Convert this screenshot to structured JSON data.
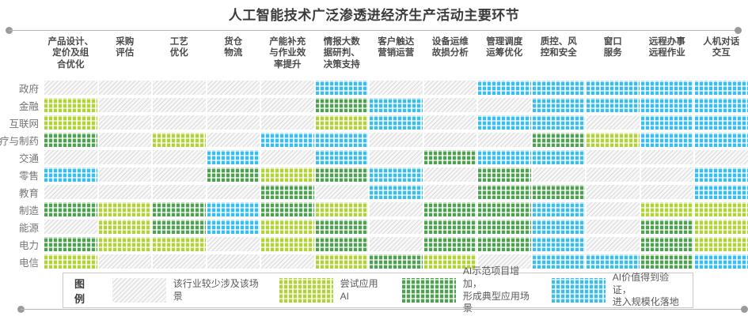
{
  "title": "人工智能技术广泛渗透进经济生产活动主要环节",
  "columns_display": [
    "产品设计、\n定价及组\n合优化",
    "采购\n评估",
    "工艺\n优化",
    "货仓\n物流",
    "产能补充\n与作业效\n率提升",
    "情报大数\n据研判、\n决策支持",
    "客户触达\n营销运营",
    "设备运维\n故损分析",
    "管理调度\n运筹优化",
    "质控、风\n控和安全",
    "窗口\n服务",
    "远程办事\n远程作业",
    "人机对话\n交互"
  ],
  "rows": [
    "政府",
    "金融",
    "互联网",
    "医疗与制药",
    "交通",
    "零售",
    "教育",
    "制造",
    "能源",
    "电力",
    "电信"
  ],
  "legend": {
    "label": "图例",
    "items": [
      {
        "level": 0,
        "text": "该行业较少涉及该场景"
      },
      {
        "level": 1,
        "text": "尝试应用AI"
      },
      {
        "level": 2,
        "text": "AI示范项目增加，\n形成典型应用场景"
      },
      {
        "level": 3,
        "text": "AI价值得到验证，\n进入规模化落地"
      }
    ]
  },
  "colors": {
    "none_hatch": "#dadada",
    "try_green": "#b2d23c",
    "demo_green": "#519f54",
    "scale_blue": "#3cbdee",
    "title_text": "#3b3b3b",
    "header_text": "#4a4a4a",
    "row_label_text": "#757575"
  },
  "chart_data": {
    "type": "heatmap",
    "title": "人工智能技术广泛渗透进经济生产活动主要环节",
    "x_categories": [
      "产品设计、定价及组合优化",
      "采购评估",
      "工艺优化",
      "货仓物流",
      "产能补充与作业效率提升",
      "情报大数据研判、决策支持",
      "客户触达营销运营",
      "设备运维故损分析",
      "管理调度运筹优化",
      "质控、风控和安全",
      "窗口服务",
      "远程办事远程作业",
      "人机对话交互"
    ],
    "y_categories": [
      "政府",
      "金融",
      "互联网",
      "医疗与制药",
      "交通",
      "零售",
      "教育",
      "制造",
      "能源",
      "电力",
      "电信"
    ],
    "levels": [
      {
        "value": 0,
        "label": "该行业较少涉及该场景"
      },
      {
        "value": 1,
        "label": "尝试应用AI"
      },
      {
        "value": 2,
        "label": "AI示范项目增加，形成典型应用场景"
      },
      {
        "value": 3,
        "label": "AI价值得到验证，进入规模化落地"
      }
    ],
    "values": [
      [
        0,
        0,
        0,
        0,
        0,
        3,
        0,
        0,
        3,
        3,
        3,
        3,
        3
      ],
      [
        1,
        0,
        0,
        0,
        0,
        2,
        3,
        0,
        0,
        3,
        3,
        3,
        3
      ],
      [
        1,
        0,
        0,
        0,
        0,
        1,
        3,
        0,
        3,
        3,
        0,
        3,
        3
      ],
      [
        2,
        0,
        1,
        0,
        3,
        3,
        0,
        0,
        0,
        2,
        1,
        3,
        3
      ],
      [
        0,
        0,
        0,
        3,
        0,
        3,
        0,
        2,
        3,
        3,
        0,
        0,
        0
      ],
      [
        3,
        0,
        0,
        2,
        1,
        2,
        3,
        0,
        2,
        0,
        0,
        0,
        3
      ],
      [
        0,
        0,
        0,
        0,
        2,
        0,
        3,
        0,
        2,
        2,
        0,
        0,
        3
      ],
      [
        2,
        1,
        2,
        3,
        2,
        1,
        0,
        2,
        2,
        3,
        0,
        1,
        1
      ],
      [
        0,
        1,
        2,
        3,
        1,
        2,
        0,
        2,
        2,
        3,
        0,
        2,
        1
      ],
      [
        2,
        1,
        1,
        0,
        1,
        2,
        0,
        2,
        2,
        3,
        0,
        2,
        1
      ],
      [
        1,
        0,
        0,
        0,
        0,
        1,
        2,
        1,
        0,
        3,
        3,
        2,
        3
      ]
    ],
    "legend_position": "bottom",
    "grid": false
  }
}
